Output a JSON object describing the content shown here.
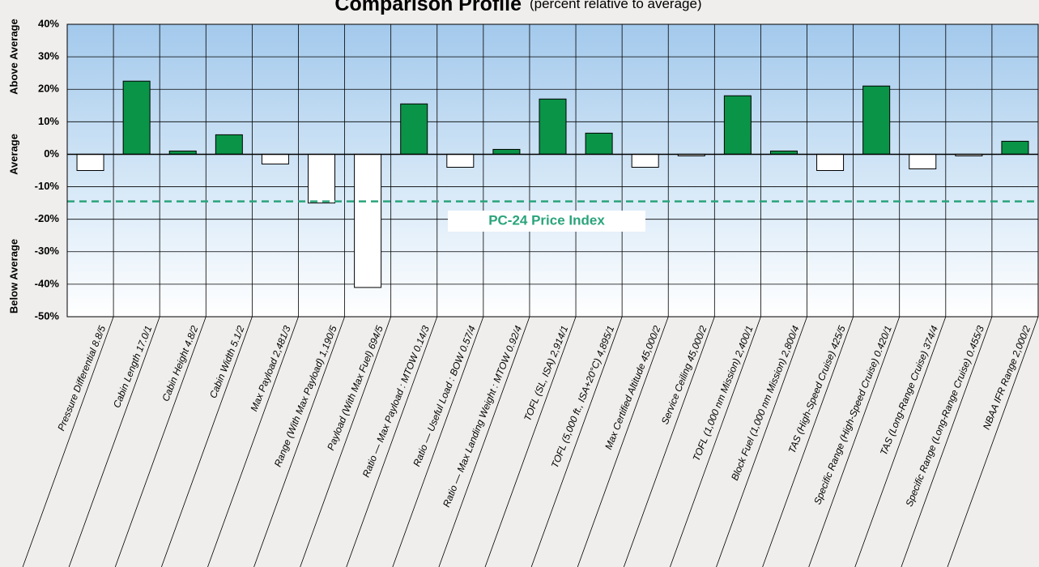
{
  "chart_data": {
    "type": "bar",
    "title": "Comparison Profile",
    "subtitle": "(percent relative to average)",
    "categories": [
      "Pressure Differential  8.8/5",
      "Cabin Length 17.0/1",
      "Cabin Height 4.8/2",
      "Cabin Width 5.1/2",
      "Max Payload 2,481/3",
      "Range (With Max Payload) 1,190/5",
      "Payload (With Max Fuel) 694/5",
      "Ratio —  Max Payload : MTOW 0.14/3",
      "Ratio — Useful Load : BOW 0.57/4",
      "Ratio — Max Landing Weight : MTOW 0.92/4",
      "TOFL (SL, ISA) 2,914/1",
      "TOFL (5,000 ft., ISA+20°C) 4,895/1",
      "Max Certified Altitude 45,000/2",
      "Service Ceiling 45,000/2",
      "TOFL (1,000 nm Mission) 2,400/1",
      "Block Fuel (1,000 nm Mission) 2,800/4",
      "TAS (High-Speed Cruise) 425/5",
      "Specific Range (High-Speed Cruise) 0.420/1",
      "TAS (Long-Range Cruise) 374/4",
      "Specific Range (Long-Range Cruise) 0.455/3",
      "NBAA IFR Range 2,000/2"
    ],
    "values": [
      -5,
      22.5,
      1,
      6,
      -3,
      -15,
      -41,
      15.5,
      -4,
      1.5,
      17,
      6.5,
      -4,
      -0.5,
      18,
      1,
      -5,
      21,
      -4.5,
      -0.5,
      4
    ],
    "positive_color": "#0a9447",
    "negative_color": "#ffffff",
    "ylim": [
      -50,
      40
    ],
    "yticks": [
      {
        "value": -50,
        "label": "-50%"
      },
      {
        "value": -40,
        "label": "-40%"
      },
      {
        "value": -30,
        "label": "-30%"
      },
      {
        "value": -20,
        "label": "-20%"
      },
      {
        "value": -10,
        "label": "-10%"
      },
      {
        "value": 0,
        "label": "0%"
      },
      {
        "value": 10,
        "label": "10%"
      },
      {
        "value": 20,
        "label": "20%"
      },
      {
        "value": 30,
        "label": "30%"
      },
      {
        "value": 40,
        "label": "40%"
      }
    ],
    "grid": true,
    "reference_line": {
      "value": -14.5,
      "label": "PC-24 Price Index",
      "color": "#2aa47a"
    },
    "side_labels": [
      "Above Average",
      "Average",
      "Below Average"
    ]
  }
}
